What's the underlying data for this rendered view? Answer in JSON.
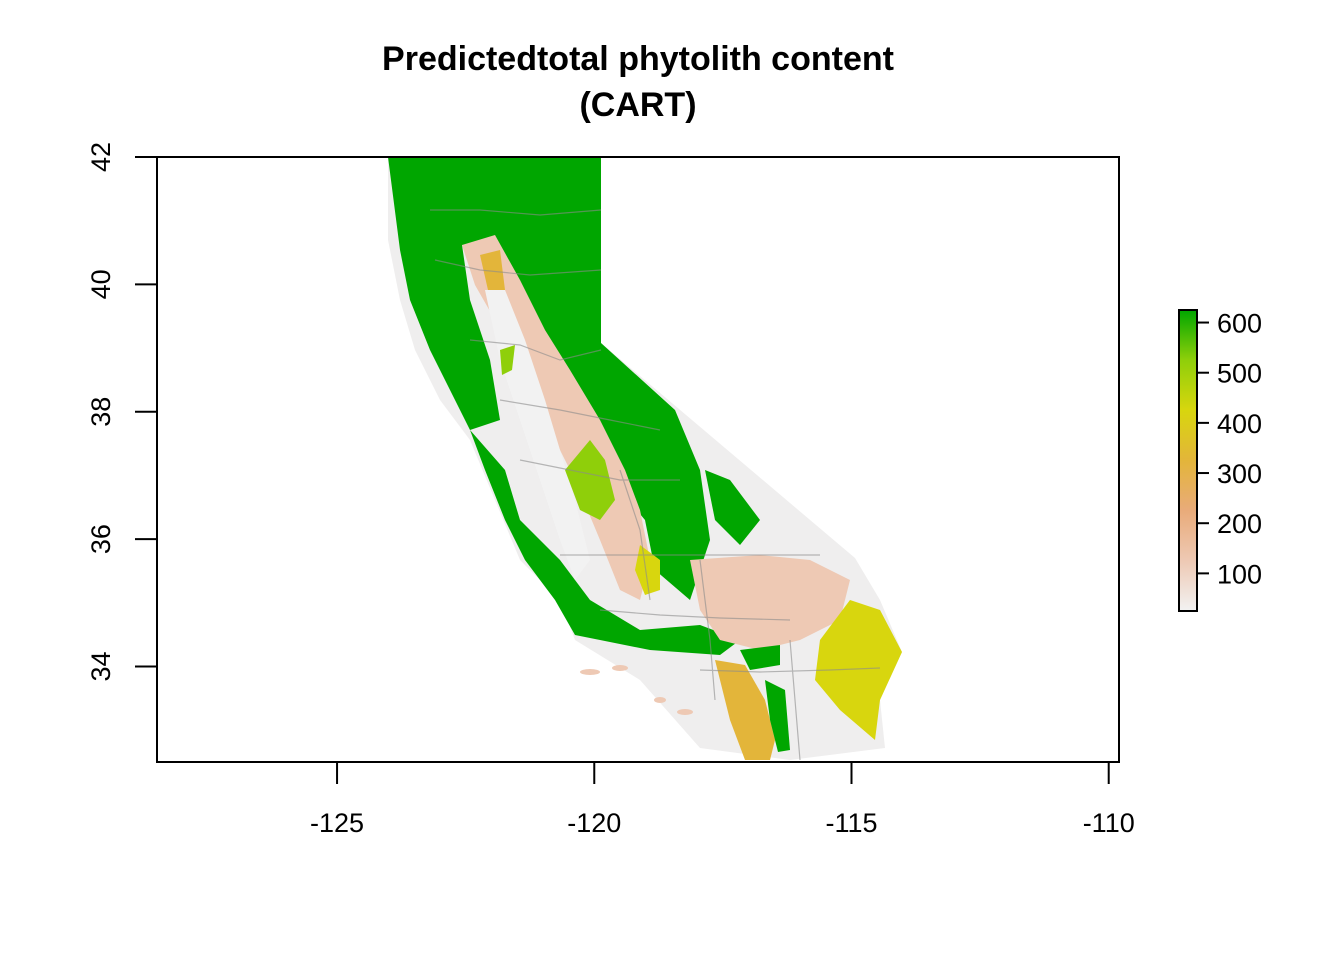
{
  "chart_data": {
    "type": "heatmap",
    "title": "Predictedtotal phytolith content",
    "subtitle": "(CART)",
    "xlabel": "",
    "ylabel": "",
    "xlim": [
      -128.5,
      -109.8
    ],
    "ylim": [
      32.5,
      42
    ],
    "x_ticks": [
      {
        "value": -125,
        "label": "-125"
      },
      {
        "value": -120,
        "label": "-120"
      },
      {
        "value": -115,
        "label": "-115"
      },
      {
        "value": -110,
        "label": "-110"
      }
    ],
    "y_ticks": [
      {
        "value": 34,
        "label": "34"
      },
      {
        "value": 36,
        "label": "36"
      },
      {
        "value": 38,
        "label": "38"
      },
      {
        "value": 40,
        "label": "40"
      },
      {
        "value": 42,
        "label": "42"
      }
    ],
    "legend": {
      "placement": "right",
      "range": [
        25,
        625
      ],
      "ticks": [
        {
          "value": 100,
          "label": "100"
        },
        {
          "value": 200,
          "label": "200"
        },
        {
          "value": 300,
          "label": "300"
        },
        {
          "value": 400,
          "label": "400"
        },
        {
          "value": 500,
          "label": "500"
        },
        {
          "value": 600,
          "label": "600"
        }
      ],
      "colors": [
        "#f2f2f2",
        "#eec9b4",
        "#e9ab7a",
        "#e3b53a",
        "#d8d60e",
        "#8fcf0a",
        "#00a600"
      ]
    },
    "grid": false
  }
}
